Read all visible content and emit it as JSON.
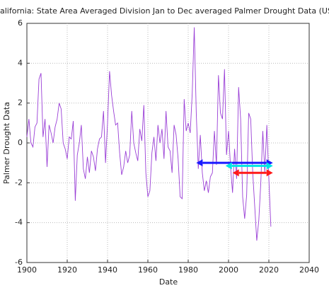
{
  "chart_data": {
    "type": "line",
    "title": "alifornia: State Area Averaged Division  Jan to Dec averaged Palmer Drought Data  (US Climate Div",
    "xlabel": "Date",
    "ylabel": "Palmer Drought Data",
    "color": "#9a3fd6",
    "grid": true,
    "xlim": [
      1900,
      2040
    ],
    "xticks": [
      1900,
      1920,
      1940,
      1960,
      1980,
      2000,
      2020,
      2040
    ],
    "ylim": [
      -6,
      6
    ],
    "yticks": [
      -6,
      -4,
      -2,
      0,
      2,
      4,
      6
    ],
    "x": [
      1900,
      1901,
      1902,
      1903,
      1904,
      1905,
      1906,
      1907,
      1908,
      1909,
      1910,
      1911,
      1912,
      1913,
      1914,
      1915,
      1916,
      1917,
      1918,
      1919,
      1920,
      1921,
      1922,
      1923,
      1924,
      1925,
      1926,
      1927,
      1928,
      1929,
      1930,
      1931,
      1932,
      1933,
      1934,
      1935,
      1936,
      1937,
      1938,
      1939,
      1940,
      1941,
      1942,
      1943,
      1944,
      1945,
      1946,
      1947,
      1948,
      1949,
      1950,
      1951,
      1952,
      1953,
      1954,
      1955,
      1956,
      1957,
      1958,
      1959,
      1960,
      1961,
      1962,
      1963,
      1964,
      1965,
      1966,
      1967,
      1968,
      1969,
      1970,
      1971,
      1972,
      1973,
      1974,
      1975,
      1976,
      1977,
      1978,
      1979,
      1980,
      1981,
      1982,
      1983,
      1984,
      1985,
      1986,
      1987,
      1988,
      1989,
      1990,
      1991,
      1992,
      1993,
      1994,
      1995,
      1996,
      1997,
      1998,
      1999,
      2000,
      2001,
      2002,
      2003,
      2004,
      2005,
      2006,
      2007,
      2008,
      2009,
      2010,
      2011,
      2012,
      2013,
      2014,
      2015,
      2016,
      2017,
      2018,
      2019,
      2020,
      2021
    ],
    "values": [
      0.3,
      1.2,
      0.0,
      -0.2,
      0.8,
      1.0,
      3.2,
      3.5,
      0.3,
      1.2,
      -1.2,
      0.9,
      0.5,
      0.0,
      0.8,
      1.2,
      2.0,
      1.7,
      0.0,
      -0.3,
      -0.8,
      0.3,
      0.2,
      1.1,
      -2.9,
      -0.6,
      0.0,
      0.9,
      -1.3,
      -1.8,
      -0.7,
      -1.5,
      -0.4,
      -0.7,
      -1.4,
      -0.3,
      0.2,
      0.3,
      1.6,
      -1.0,
      1.0,
      3.6,
      2.4,
      1.6,
      0.9,
      1.0,
      -0.5,
      -1.6,
      -1.2,
      -0.4,
      -1.0,
      -0.6,
      1.6,
      0.0,
      -0.5,
      -0.9,
      0.7,
      0.1,
      1.9,
      -1.5,
      -2.7,
      -2.4,
      -0.5,
      0.3,
      -0.9,
      0.9,
      0.0,
      0.7,
      -0.8,
      1.6,
      -0.2,
      -0.4,
      -1.5,
      0.9,
      0.4,
      -0.8,
      -2.7,
      -2.8,
      2.2,
      0.6,
      1.0,
      0.5,
      2.5,
      5.8,
      1.5,
      -1.3,
      0.4,
      -1.5,
      -2.4,
      -1.9,
      -2.5,
      -1.7,
      -1.5,
      0.6,
      -1.1,
      3.4,
      1.5,
      1.2,
      3.7,
      -0.6,
      0.6,
      -1.2,
      -2.5,
      -0.3,
      -1.8,
      2.8,
      1.2,
      -2.7,
      -3.8,
      -2.6,
      1.5,
      1.2,
      -1.5,
      -3.2,
      -4.9,
      -3.9,
      -2.0,
      0.6,
      -1.5,
      0.9,
      -1.8,
      -4.2
    ],
    "arrows": [
      {
        "x": [
          1984,
          2022
        ],
        "y": -1.0,
        "color": "#1a1aff"
      },
      {
        "x": [
          1998.5,
          2022
        ],
        "y": -1.15,
        "color": "#00e5e5"
      },
      {
        "x": [
          2002,
          2022
        ],
        "y": -1.5,
        "color": "#ff1a1a"
      }
    ]
  }
}
